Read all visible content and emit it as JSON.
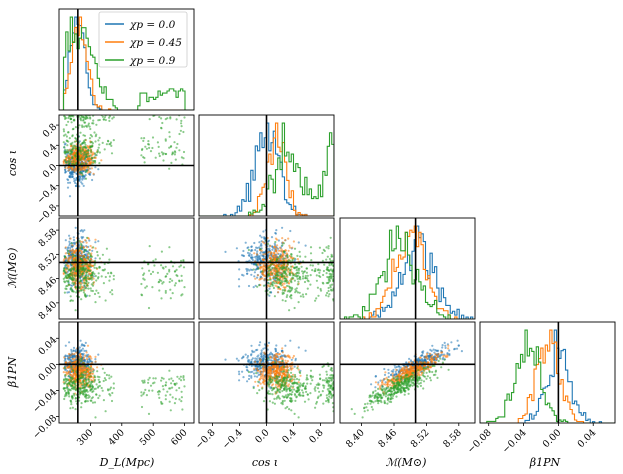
{
  "chart_data": {
    "type": "corner",
    "parameters": [
      {
        "id": "DL",
        "label": "D_L(Mpc)",
        "range": [
          200,
          630
        ],
        "ticks": [
          "300",
          "400",
          "500",
          "600"
        ],
        "tick_values": [
          300,
          400,
          500,
          600
        ],
        "truth": 260
      },
      {
        "id": "cosi",
        "label": "cos ι",
        "range": [
          -1.0,
          1.0
        ],
        "ticks": [
          "−0.8",
          "−0.4",
          "0.0",
          "0.4",
          "0.8"
        ],
        "tick_values": [
          -0.8,
          -0.4,
          0.0,
          0.4,
          0.8
        ],
        "truth": 0.0
      },
      {
        "id": "mc",
        "label": "ℳ(M⊙)",
        "range": [
          8.36,
          8.61
        ],
        "ticks": [
          "8.40",
          "8.46",
          "8.52",
          "8.58"
        ],
        "tick_values": [
          8.4,
          8.46,
          8.52,
          8.58
        ],
        "truth": 8.5
      },
      {
        "id": "beta",
        "label": "β₁PN",
        "range": [
          -0.09,
          0.065
        ],
        "ticks": [
          "−0.08",
          "−0.04",
          "0.00",
          "0.04"
        ],
        "tick_values": [
          -0.08,
          -0.04,
          0.0,
          0.04
        ],
        "truth": 0.0
      }
    ],
    "series": [
      {
        "name": "χp = 0.0",
        "color": "#1f77b4",
        "DL": {
          "peak": 260,
          "width": 22
        },
        "cosi": {
          "peak": 0.0,
          "width": 0.18
        },
        "mc": {
          "peak": 8.505,
          "width": 0.03
        },
        "beta": {
          "peak": 0.0,
          "width": 0.013
        }
      },
      {
        "name": "χp = 0.45",
        "color": "#ff7f0e",
        "DL": {
          "peak": 265,
          "width": 25
        },
        "cosi": {
          "peak": 0.15,
          "width": 0.13
        },
        "mc": {
          "peak": 8.49,
          "width": 0.028
        },
        "beta": {
          "peak": -0.012,
          "width": 0.013
        }
      },
      {
        "name": "χp = 0.9",
        "color": "#2ca02c",
        "DL": {
          "peak": 270,
          "width": 40,
          "tail": [
            450,
            600
          ]
        },
        "cosi": {
          "peak": 0.3,
          "width": 0.2,
          "secondary": 1.0
        },
        "mc": {
          "peak": 8.47,
          "width": 0.03
        },
        "beta": {
          "peak": -0.035,
          "width": 0.014
        }
      }
    ],
    "legend": {
      "position": "top-left-panel",
      "entries": [
        "χp = 0.0",
        "χp = 0.45",
        "χp = 0.9"
      ]
    },
    "truth_line_color": "#000000"
  },
  "labels": {
    "x_DL": "D_L(Mpc)",
    "x_cosi": "cos ι",
    "x_mc": "ℳ(M⊙)",
    "x_beta": "β1PN",
    "y_cosi": "cos ι",
    "y_mc": "ℳ(M⊙)",
    "y_beta": "β1PN"
  }
}
